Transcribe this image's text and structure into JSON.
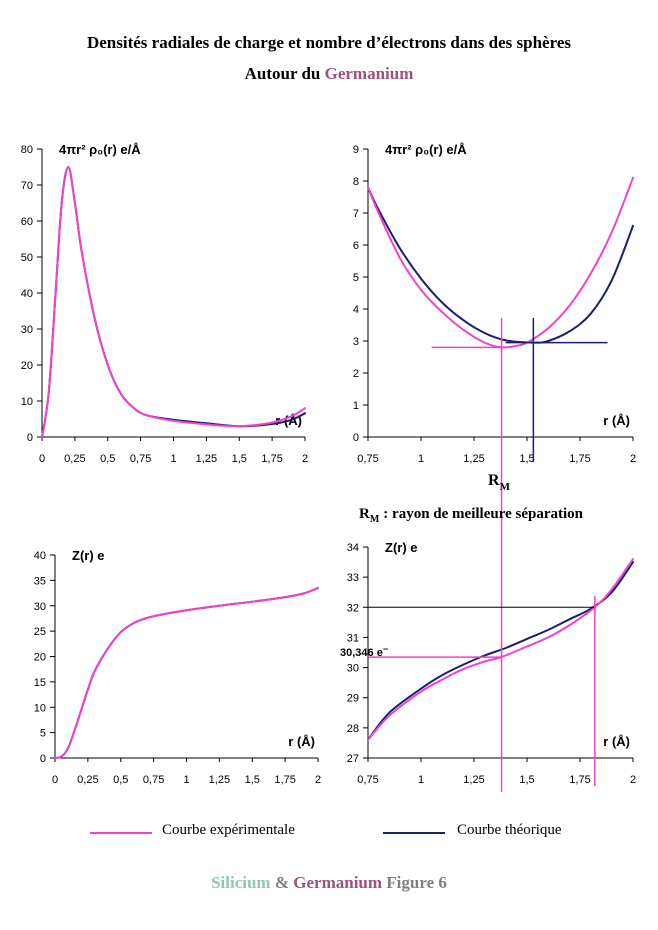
{
  "title": {
    "line1": "Densités radiales de charge et nombre d’électrons dans des sphères",
    "line2_prefix": "Autour du ",
    "line2_element": "Germanium"
  },
  "colors": {
    "experimental": "#ee44cc",
    "theoretical": "#1a1f6e",
    "germanium": "#a0527a",
    "silicium": "#8ec9b0",
    "figure_text": "#7f7f7f"
  },
  "rm_label": "R",
  "rm_sub": "M",
  "rm_definition": ": rayon de meilleure séparation",
  "z_value_label": "30,346 e",
  "z_value_sup": "−",
  "legend": {
    "experimental": "Courbe expérimentale",
    "theoretical": "Courbe théorique"
  },
  "footer": {
    "silicium": "Silicium",
    "amp": " & ",
    "germanium": "Germanium",
    "figure": " Figure 6"
  },
  "chart_data": [
    {
      "type": "line",
      "ylabel": "4πr² ρ₀(r) e/Å",
      "xlabel": "r (Å)",
      "xlim": [
        0,
        2
      ],
      "ylim": [
        0,
        80
      ],
      "xticks": [
        "0",
        "0,25",
        "0,5",
        "0,75",
        "1",
        "1,25",
        "1,5",
        "1,75",
        "2"
      ],
      "yticks": [
        "0",
        "10",
        "20",
        "30",
        "40",
        "50",
        "60",
        "70",
        "80"
      ],
      "series": [
        {
          "x": [
            0,
            0.05,
            0.1,
            0.15,
            0.2,
            0.25,
            0.3,
            0.4,
            0.5,
            0.6,
            0.7,
            0.8,
            1.0,
            1.25,
            1.5,
            1.75,
            1.9,
            2.0
          ],
          "y": [
            0,
            12,
            38,
            65,
            75,
            65,
            52,
            33,
            20,
            12,
            8,
            6,
            4.5,
            3.5,
            3,
            4,
            5.8,
            8
          ]
        },
        {
          "x": [
            0,
            0.05,
            0.1,
            0.15,
            0.2,
            0.25,
            0.3,
            0.4,
            0.5,
            0.6,
            0.7,
            0.8,
            1.0,
            1.25,
            1.5,
            1.75,
            1.9,
            2.0
          ],
          "y": [
            0,
            12,
            38,
            65,
            75,
            65,
            52,
            33,
            20,
            12,
            8,
            6,
            4.8,
            3.8,
            3,
            3.6,
            4.8,
            6.6
          ]
        }
      ]
    },
    {
      "type": "line",
      "ylabel": "4πr² ρ₀(r) e/Å",
      "xlabel": "r (Å)",
      "xlim": [
        0.75,
        2
      ],
      "ylim": [
        0,
        9
      ],
      "xticks": [
        "0,75",
        "1",
        "1,25",
        "1,5",
        "1,75",
        "2"
      ],
      "yticks": [
        "0",
        "1",
        "2",
        "3",
        "4",
        "5",
        "6",
        "7",
        "8",
        "9"
      ],
      "series": [
        {
          "x": [
            0.75,
            0.8,
            0.9,
            1.0,
            1.1,
            1.2,
            1.3,
            1.38,
            1.45,
            1.5,
            1.6,
            1.7,
            1.8,
            1.9,
            2.0
          ],
          "y": [
            7.8,
            7.0,
            5.6,
            4.6,
            3.9,
            3.35,
            2.95,
            2.8,
            2.85,
            2.95,
            3.4,
            4.1,
            5.1,
            6.4,
            8.1
          ]
        },
        {
          "x": [
            0.75,
            0.8,
            0.9,
            1.0,
            1.1,
            1.2,
            1.3,
            1.4,
            1.53,
            1.6,
            1.7,
            1.8,
            1.9,
            2.0
          ],
          "y": [
            7.8,
            7.1,
            5.9,
            4.95,
            4.2,
            3.65,
            3.25,
            3.02,
            2.95,
            3.0,
            3.3,
            3.85,
            4.9,
            6.6
          ]
        }
      ],
      "annotations": {
        "rm_exp": 1.38,
        "rm_theo": 1.53
      }
    },
    {
      "type": "line",
      "ylabel": "Z(r) e",
      "xlabel": "r (Å)",
      "xlim": [
        0,
        2
      ],
      "ylim": [
        0,
        40
      ],
      "xticks": [
        "0",
        "0,25",
        "0,5",
        "0,75",
        "1",
        "1,25",
        "1,5",
        "1,75",
        "2"
      ],
      "yticks": [
        "0",
        "5",
        "10",
        "15",
        "20",
        "25",
        "30",
        "35",
        "40"
      ],
      "series": [
        {
          "x": [
            0,
            0.05,
            0.1,
            0.15,
            0.2,
            0.25,
            0.3,
            0.4,
            0.5,
            0.6,
            0.7,
            0.8,
            1.0,
            1.25,
            1.5,
            1.75,
            1.9,
            2.0
          ],
          "y": [
            0,
            0.3,
            2,
            5.5,
            9.5,
            13.5,
            17,
            21.5,
            24.8,
            26.6,
            27.6,
            28.2,
            29.1,
            30.0,
            30.8,
            31.7,
            32.5,
            33.5
          ]
        },
        {
          "x": [
            0,
            0.05,
            0.1,
            0.15,
            0.2,
            0.25,
            0.3,
            0.4,
            0.5,
            0.6,
            0.7,
            0.8,
            1.0,
            1.25,
            1.5,
            1.75,
            1.9,
            2.0
          ],
          "y": [
            0,
            0.3,
            2,
            5.5,
            9.5,
            13.5,
            17,
            21.5,
            24.8,
            26.6,
            27.6,
            28.2,
            29.1,
            30.0,
            30.8,
            31.7,
            32.5,
            33.5
          ]
        }
      ]
    },
    {
      "type": "line",
      "ylabel": "Z(r) e",
      "xlabel": "r (Å)",
      "xlim": [
        0.75,
        2
      ],
      "ylim": [
        27,
        34
      ],
      "xticks": [
        "0,75",
        "1",
        "1,25",
        "1,5",
        "1,75",
        "2"
      ],
      "yticks": [
        "27",
        "28",
        "29",
        "30",
        "31",
        "32",
        "33",
        "34"
      ],
      "series": [
        {
          "x": [
            0.75,
            0.85,
            1.0,
            1.1,
            1.2,
            1.3,
            1.38,
            1.5,
            1.6,
            1.7,
            1.82,
            1.9,
            2.0
          ],
          "y": [
            27.6,
            28.4,
            29.2,
            29.6,
            29.95,
            30.2,
            30.35,
            30.7,
            31.0,
            31.4,
            32.0,
            32.6,
            33.6
          ]
        },
        {
          "x": [
            0.75,
            0.85,
            1.0,
            1.1,
            1.2,
            1.3,
            1.4,
            1.5,
            1.6,
            1.7,
            1.8,
            1.9,
            2.0
          ],
          "y": [
            27.6,
            28.5,
            29.3,
            29.75,
            30.1,
            30.4,
            30.65,
            30.95,
            31.25,
            31.6,
            31.95,
            32.5,
            33.5
          ]
        }
      ],
      "annotations": {
        "rm_exp": 1.38,
        "z_exp": 30.346,
        "rm_2": 1.82,
        "z_2": 32
      }
    }
  ]
}
